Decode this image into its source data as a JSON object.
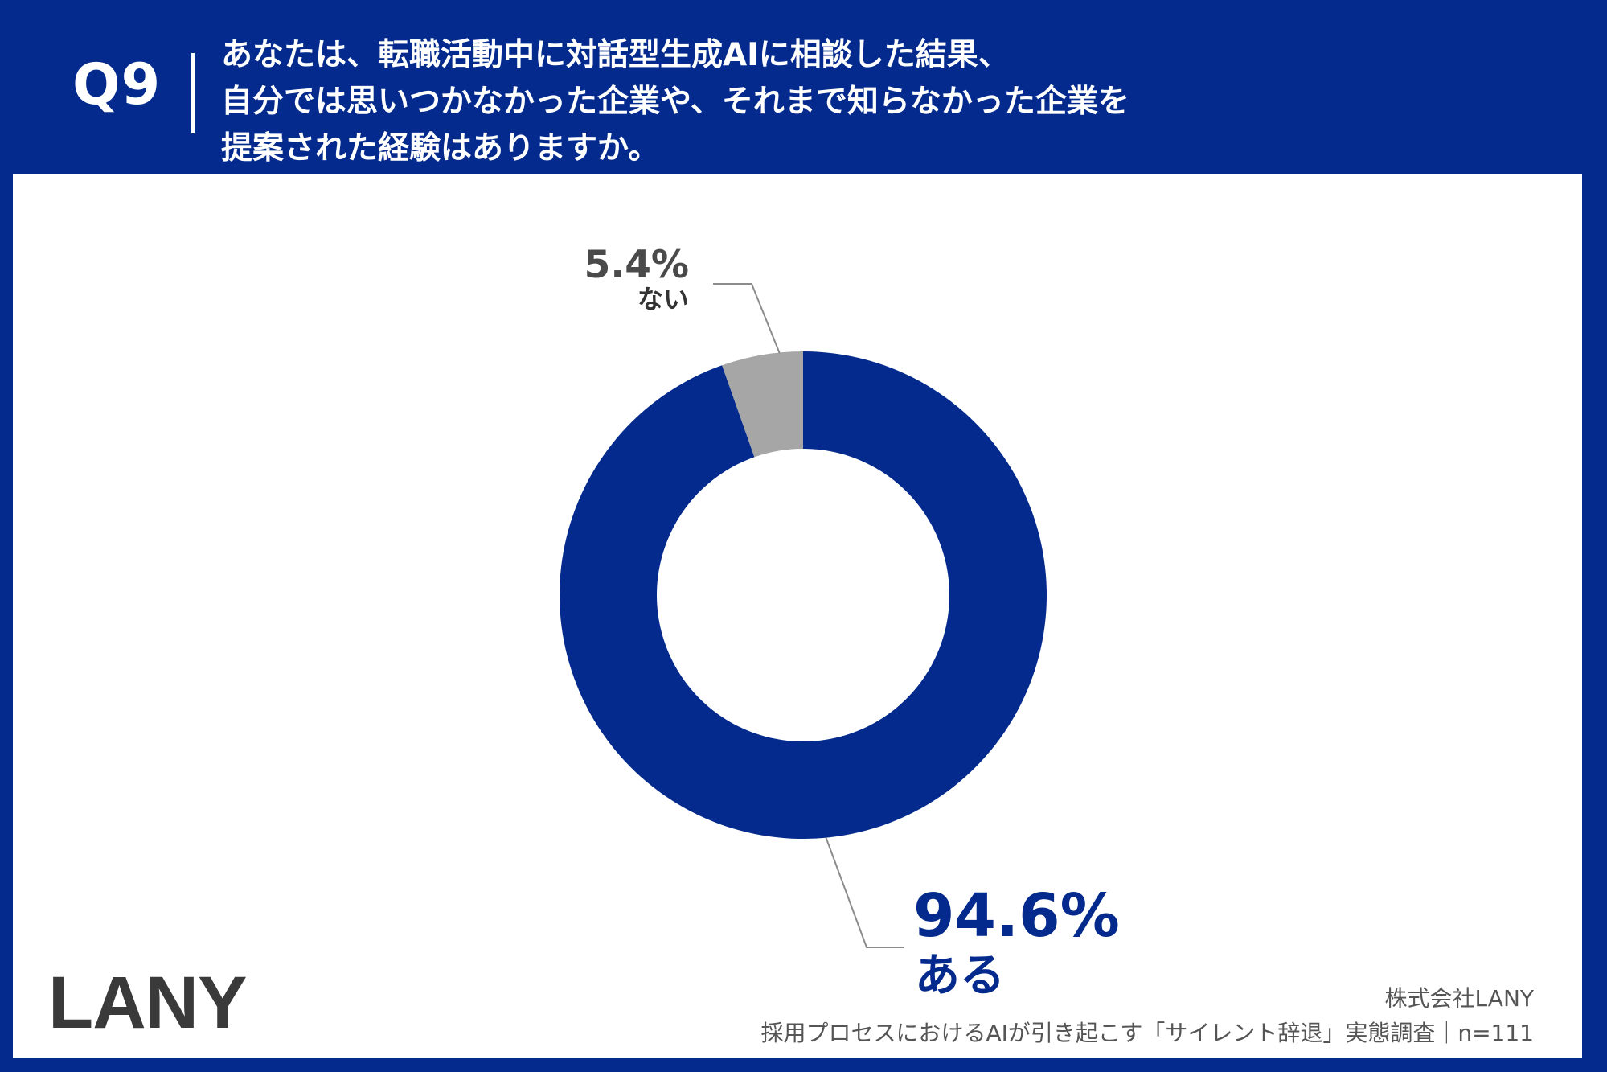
{
  "header": {
    "question_number": "Q9",
    "question_lines": [
      "あなたは、転職活動中に対話型生成AIに相談した結果、",
      "自分では思いつかなかった企業や、それまで知らなかった企業を",
      "提案された経験はありますか。"
    ]
  },
  "chart_data": {
    "type": "pie",
    "donut": true,
    "slices": [
      {
        "label": "ある",
        "value": 94.6,
        "value_label": "94.6%",
        "color": "#032a8c"
      },
      {
        "label": "ない",
        "value": 5.4,
        "value_label": "5.4%",
        "color": "#a6a6a6"
      }
    ],
    "start_angle": "12 o'clock",
    "direction": "clockwise"
  },
  "footer": {
    "logo": "LANY",
    "company": "株式会社LANY",
    "source": "採用プロセスにおけるAIが引き起こす「サイレント辞退」実態調査｜n=111"
  }
}
